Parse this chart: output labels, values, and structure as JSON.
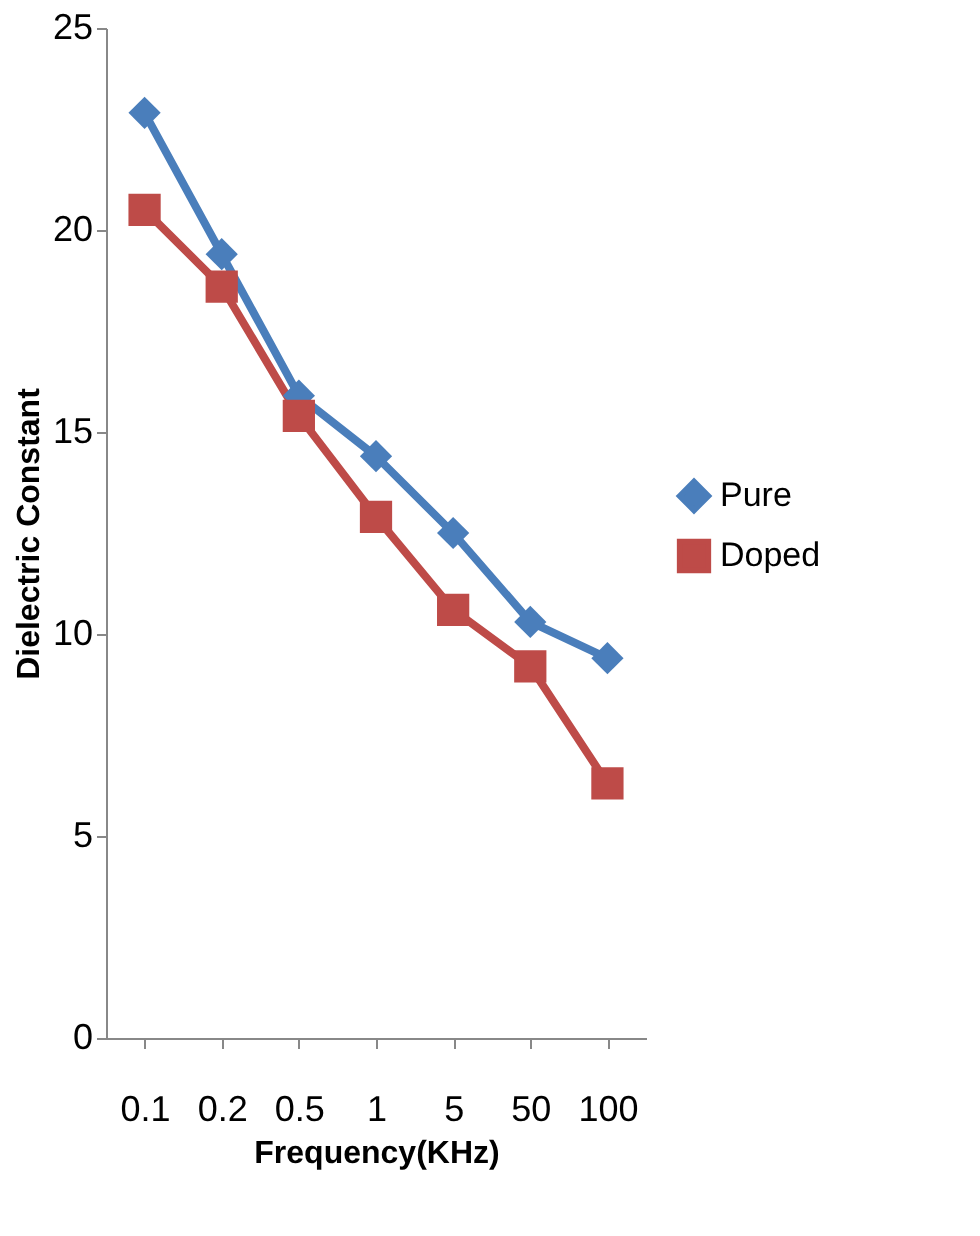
{
  "chart_data": {
    "type": "line",
    "xlabel": "Frequency(KHz)",
    "ylabel": "Dielectric Constant",
    "categories": [
      "0.1",
      "0.2",
      "0.5",
      "1",
      "5",
      "50",
      "100"
    ],
    "series": [
      {
        "name": "Pure",
        "color": "#4a7ebb",
        "marker": "diamond",
        "values": [
          22.9,
          19.4,
          15.9,
          14.4,
          12.5,
          10.3,
          9.4
        ]
      },
      {
        "name": "Doped",
        "color": "#be4b48",
        "marker": "square",
        "values": [
          20.5,
          18.6,
          15.4,
          12.9,
          10.6,
          9.2,
          6.3
        ]
      }
    ],
    "ylim": [
      0,
      25
    ],
    "yticks": [
      0,
      5,
      10,
      15,
      20,
      25
    ],
    "grid": false,
    "legend": "right",
    "line_style": "solid"
  }
}
